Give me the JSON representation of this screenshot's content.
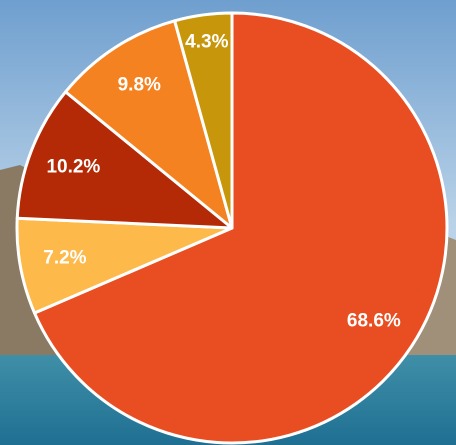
{
  "chart_data": {
    "type": "pie",
    "categories": [
      null,
      null,
      null,
      null,
      null
    ],
    "values": [
      68.6,
      7.2,
      10.2,
      9.8,
      4.3
    ],
    "value_labels": [
      "68.6%",
      "7.2%",
      "10.2%",
      "9.8%",
      "4.3%"
    ],
    "colors": [
      "#e84e22",
      "#fdb94a",
      "#b52a06",
      "#f58220",
      "#c8960a"
    ]
  }
}
